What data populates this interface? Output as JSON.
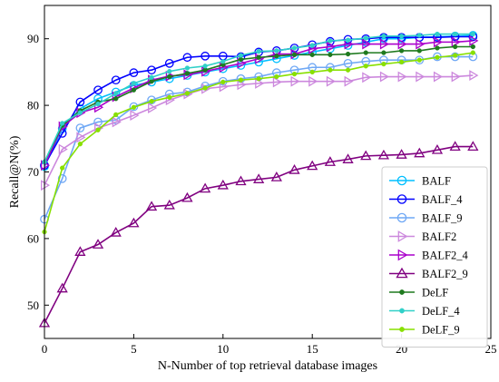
{
  "chart_data": {
    "type": "line",
    "xlabel": "N-Number of top retrieval database images",
    "ylabel": "Recall@N(%)",
    "xlim": [
      0,
      25
    ],
    "ylim": [
      45,
      95
    ],
    "xticks": [
      0,
      5,
      10,
      15,
      20,
      25
    ],
    "yticks": [
      50,
      60,
      70,
      80,
      90
    ],
    "grid": false,
    "legend_position": "lower-right",
    "x": [
      0,
      1,
      2,
      3,
      4,
      5,
      6,
      7,
      8,
      9,
      10,
      11,
      12,
      13,
      14,
      15,
      16,
      17,
      18,
      19,
      20,
      21,
      22,
      23,
      24
    ],
    "series": [
      {
        "name": "BALF",
        "color": "#00bfff",
        "marker": "circle-open",
        "values": [
          70.8,
          76.5,
          79.5,
          81.0,
          82.0,
          83.0,
          83.5,
          84.0,
          84.5,
          85.0,
          85.5,
          86.0,
          86.5,
          87.0,
          87.5,
          88.0,
          88.5,
          89.0,
          89.5,
          90.0,
          90.0,
          90.2,
          90.3,
          90.4,
          90.5
        ]
      },
      {
        "name": "BALF_4",
        "color": "#0000ff",
        "marker": "circle-open",
        "values": [
          71.0,
          75.8,
          80.5,
          82.3,
          83.8,
          84.9,
          85.3,
          86.3,
          87.2,
          87.4,
          87.4,
          87.3,
          88.0,
          88.2,
          88.6,
          89.1,
          89.6,
          89.9,
          90.0,
          90.2,
          90.2,
          90.2,
          90.2,
          90.3,
          90.3
        ]
      },
      {
        "name": "BALF_9",
        "color": "#6fa8f5",
        "marker": "circle-open",
        "values": [
          62.9,
          69.0,
          76.6,
          77.5,
          77.8,
          79.8,
          80.8,
          81.7,
          82.0,
          82.9,
          83.6,
          84.0,
          84.3,
          84.9,
          85.3,
          85.7,
          85.7,
          86.3,
          86.6,
          86.8,
          86.8,
          86.8,
          87.3,
          87.3,
          87.3
        ]
      },
      {
        "name": "BALF2",
        "color": "#cc88dd",
        "marker": "triangle-right-open",
        "values": [
          68.0,
          73.4,
          75.2,
          76.6,
          77.5,
          78.5,
          79.6,
          80.8,
          81.7,
          82.5,
          82.8,
          83.1,
          83.3,
          83.5,
          83.6,
          83.6,
          83.6,
          83.6,
          84.2,
          84.3,
          84.3,
          84.3,
          84.3,
          84.3,
          84.5
        ]
      },
      {
        "name": "BALF2_4",
        "color": "#aa00cc",
        "marker": "triangle-right-open",
        "values": [
          71.0,
          76.8,
          78.9,
          79.7,
          81.3,
          82.6,
          83.8,
          84.4,
          84.6,
          85.1,
          85.7,
          86.3,
          87.0,
          87.7,
          87.7,
          88.5,
          88.8,
          89.2,
          89.2,
          89.2,
          89.2,
          89.2,
          89.5,
          89.5,
          89.7
        ]
      },
      {
        "name": "BALF2_9",
        "color": "#800080",
        "marker": "triangle-up-open",
        "values": [
          47.3,
          52.5,
          58.0,
          59.1,
          60.9,
          62.3,
          64.8,
          65.0,
          66.1,
          67.5,
          68.0,
          68.6,
          68.9,
          69.2,
          70.3,
          70.9,
          71.5,
          71.9,
          72.4,
          72.5,
          72.6,
          72.8,
          73.3,
          73.8,
          73.8
        ]
      },
      {
        "name": "DeLF",
        "color": "#1f7a1f",
        "marker": "dot",
        "values": [
          71.5,
          77.0,
          79.2,
          80.5,
          81.0,
          82.3,
          83.6,
          84.3,
          84.8,
          85.3,
          86.1,
          86.9,
          87.2,
          87.4,
          87.6,
          87.6,
          87.6,
          87.7,
          87.9,
          87.9,
          88.2,
          88.2,
          88.6,
          88.8,
          88.8
        ]
      },
      {
        "name": "DeLF_4",
        "color": "#30d0c8",
        "marker": "dot",
        "values": [
          71.5,
          77.3,
          78.9,
          80.2,
          81.8,
          83.3,
          84.2,
          85.1,
          85.6,
          85.9,
          86.6,
          87.5,
          88.1,
          88.2,
          88.6,
          89.0,
          89.7,
          89.8,
          90.1,
          90.4,
          90.4,
          90.5,
          90.7,
          90.7,
          90.7
        ]
      },
      {
        "name": "DeLF_9",
        "color": "#88e000",
        "marker": "dot",
        "values": [
          61.0,
          70.6,
          74.2,
          76.3,
          78.6,
          79.7,
          80.6,
          81.2,
          81.8,
          82.6,
          83.5,
          83.8,
          84.0,
          84.3,
          84.7,
          85.0,
          85.3,
          85.3,
          85.9,
          86.2,
          86.5,
          86.8,
          87.2,
          87.5,
          87.9
        ]
      }
    ]
  }
}
